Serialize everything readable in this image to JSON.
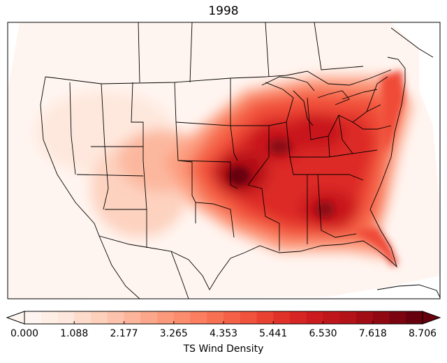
{
  "title": "1998",
  "colorbar": {
    "label": "TS Wind Density",
    "min": 0.0,
    "max": 8.706,
    "ticks": [
      "0.000",
      "1.088",
      "2.177",
      "3.265",
      "4.353",
      "5.441",
      "6.530",
      "7.618",
      "8.706"
    ],
    "tick_values": [
      0.0,
      1.088,
      2.177,
      3.265,
      4.353,
      5.441,
      6.53,
      7.618,
      8.706
    ],
    "levels": 24,
    "extend": "both",
    "colormap": "Reds",
    "colors": [
      "#fff5f0",
      "#fee8dd",
      "#fdd2bf",
      "#fcb89f",
      "#fc9e80",
      "#fb8464",
      "#f6694b",
      "#ef4c37",
      "#dd2c25",
      "#c8191d",
      "#b11117",
      "#8f0812",
      "#67000d"
    ]
  },
  "map": {
    "region": "Contiguous United States",
    "peak_value_approx": 8.7,
    "high_density_areas": [
      "Kansas / Missouri",
      "Ohio Valley",
      "Southeast US",
      "Florida",
      "Mid-Atlantic"
    ]
  }
}
